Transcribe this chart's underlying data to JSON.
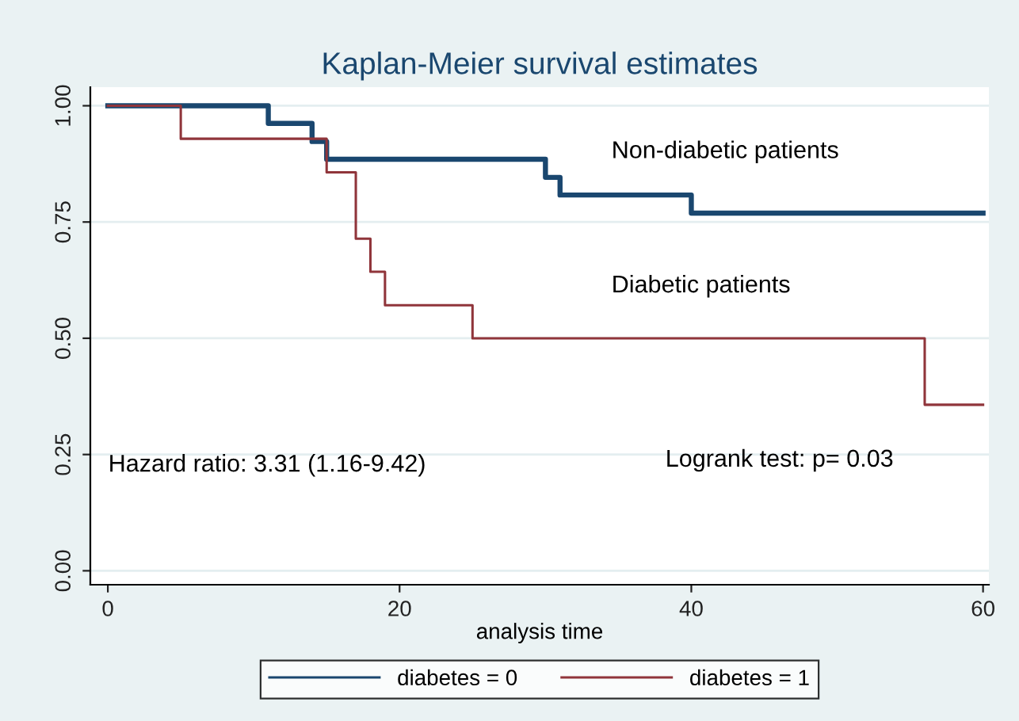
{
  "chart_data": {
    "type": "step",
    "title": "Kaplan-Meier survival estimates",
    "xlabel": "analysis time",
    "xlim": [
      -1.2,
      60.4
    ],
    "ylim": [
      -0.03,
      1.04
    ],
    "xticks": [
      0,
      20,
      40,
      60
    ],
    "yticks": [
      {
        "value": 0,
        "label": "0.00"
      },
      {
        "value": 0.25,
        "label": "0.25"
      },
      {
        "value": 0.5,
        "label": "0.50"
      },
      {
        "value": 0.75,
        "label": "0.75"
      },
      {
        "value": 1,
        "label": "1.00"
      }
    ],
    "grid": "y",
    "legend": "bottom",
    "line_style": "solid",
    "series": [
      {
        "name": "diabetes = 0",
        "color": "#1a476f",
        "x": [
          0,
          11,
          14,
          15,
          30,
          31,
          40,
          60
        ],
        "values": [
          1.0,
          0.962,
          0.923,
          0.885,
          0.846,
          0.808,
          0.769,
          0.769
        ]
      },
      {
        "name": "diabetes = 1",
        "color": "#90353b",
        "x": [
          0,
          5,
          15,
          17,
          18,
          19,
          25,
          56,
          60
        ],
        "values": [
          1.0,
          0.929,
          0.857,
          0.714,
          0.643,
          0.571,
          0.5,
          0.357,
          0.357
        ]
      }
    ],
    "annotations": [
      "Non-diabetic patients",
      "Diabetic patients",
      "Hazard ratio: 3.31 (1.16-9.42)",
      "Logrank test: p= 0.03"
    ]
  }
}
